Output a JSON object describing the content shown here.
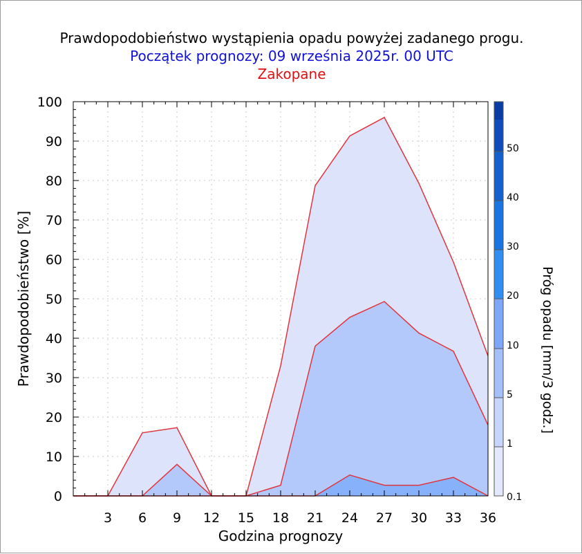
{
  "colors": {
    "text": "#000000",
    "subtitle": "#1010d8",
    "location": "#e01010",
    "outline": "#e0343c",
    "grid": "#c8c8c8",
    "band_fills": [
      "#dce3fb",
      "#b4c9fb",
      "#87b1fa"
    ]
  },
  "chart_data": {
    "type": "area",
    "title": "Prawdopodobieństwo wystąpienia opadu powyżej zadanego progu.",
    "subtitle": "Początek prognozy: 09 września 2025r. 00 UTC",
    "location": "Zakopane",
    "xlabel": "Godzina prognozy",
    "ylabel": "Prawdopodobieństwo [%]",
    "xlim": [
      0,
      36
    ],
    "ylim": [
      0,
      100
    ],
    "xticks": [
      3,
      6,
      9,
      12,
      15,
      18,
      21,
      24,
      27,
      30,
      33,
      36
    ],
    "yticks": [
      0,
      10,
      20,
      30,
      40,
      50,
      60,
      70,
      80,
      90,
      100
    ],
    "grid": true,
    "x": [
      0,
      3,
      6,
      9,
      12,
      15,
      18,
      21,
      24,
      27,
      30,
      33,
      36
    ],
    "series": [
      {
        "threshold": "0.1",
        "values": [
          0,
          0,
          16,
          17.3,
          0,
          0,
          33,
          78.7,
          91.3,
          96,
          79.3,
          59.3,
          35.5
        ]
      },
      {
        "threshold": "1",
        "values": [
          0,
          0,
          0,
          8,
          0,
          0,
          2.7,
          38,
          45.3,
          49.3,
          41.3,
          36.7,
          18
        ]
      },
      {
        "threshold": "5",
        "values": [
          0,
          0,
          0,
          0,
          0,
          0,
          0,
          0,
          5.3,
          2.7,
          2.7,
          4.7,
          0
        ]
      }
    ],
    "colorbar": {
      "label": "Próg opadu [mm/3 godz.]",
      "ticks": [
        "0.1",
        "1",
        "5",
        "10",
        "20",
        "30",
        "40",
        "50"
      ],
      "colors": [
        "#e4e8fc",
        "#c7d4fb",
        "#a5bff9",
        "#7ea7f7",
        "#2e8ff1",
        "#1a74e2",
        "#1460cc",
        "#0e4db8",
        "#0a3da3"
      ]
    }
  }
}
